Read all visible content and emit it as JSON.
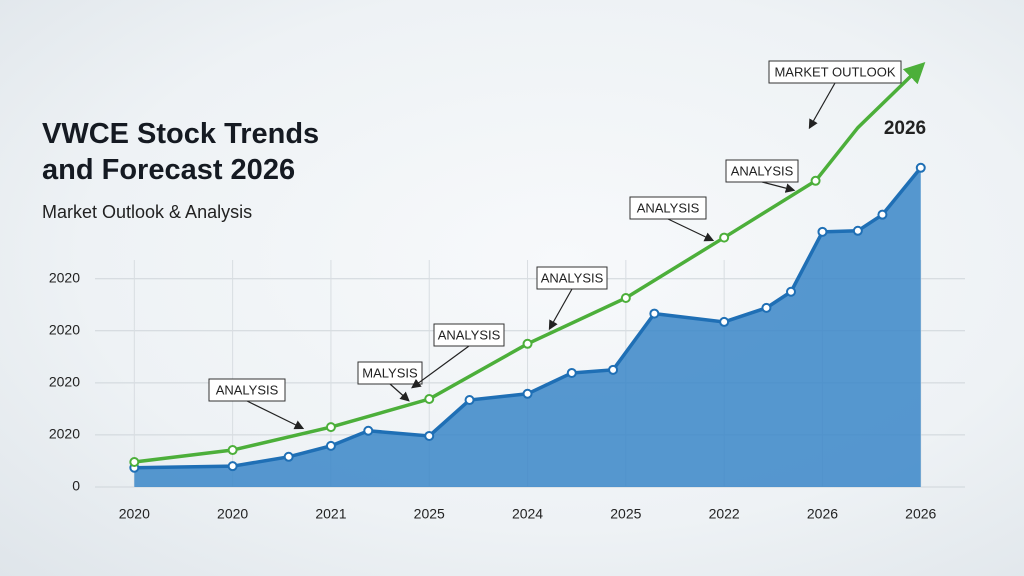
{
  "chart_data": {
    "type": "area-line",
    "title": "VWCE Stock Trends and Forecast 2026",
    "subtitle": "Market Outlook & Analysis",
    "xlim": [
      -0.4,
      8.45
    ],
    "xticks": [
      {
        "value": 0,
        "label": "2020"
      },
      {
        "value": 1,
        "label": "2020"
      },
      {
        "value": 2,
        "label": "2021"
      },
      {
        "value": 3,
        "label": "2025"
      },
      {
        "value": 4,
        "label": "2024"
      },
      {
        "value": 5,
        "label": "2025"
      },
      {
        "value": 6,
        "label": "2022"
      },
      {
        "value": 7,
        "label": "2026"
      },
      {
        "value": 8,
        "label": "2026"
      }
    ],
    "ylim": [
      0,
      8.2
    ],
    "yticks": [
      0,
      {
        "value": 1,
        "label": "2020"
      },
      {
        "value": 2,
        "label": "2020"
      },
      {
        "value": 3,
        "label": "2020"
      },
      {
        "value": 4,
        "label": "2020"
      }
    ],
    "grid": true,
    "series": [
      {
        "kind": "area",
        "color": "#3a86c8",
        "x": [
          0,
          1,
          1.57,
          2,
          2.38,
          3,
          3.41,
          4,
          4.45,
          4.87,
          5.29,
          6,
          6.43,
          6.68,
          7,
          7.36,
          7.61,
          8
        ],
        "values": [
          0.37,
          0.4,
          0.58,
          0.79,
          1.08,
          0.98,
          1.67,
          1.79,
          2.19,
          2.25,
          3.33,
          3.17,
          3.44,
          3.75,
          4.9,
          4.92,
          5.23,
          6.13
        ]
      },
      {
        "kind": "line",
        "color": "#4caf3a",
        "x": [
          0,
          1,
          2,
          3,
          4,
          5,
          6,
          6.93,
          7.36,
          7.97
        ],
        "values": [
          0.48,
          0.71,
          1.15,
          1.69,
          2.75,
          3.63,
          4.79,
          5.88,
          6.9,
          8.02
        ]
      }
    ],
    "annotations": [
      "ANALYSIS",
      "MALYSIS",
      "ANALYSIS",
      "ANALYSIS",
      "ANALYSIS",
      "ANALYSIS",
      "MARKET OUTLOOK",
      "2026"
    ]
  }
}
